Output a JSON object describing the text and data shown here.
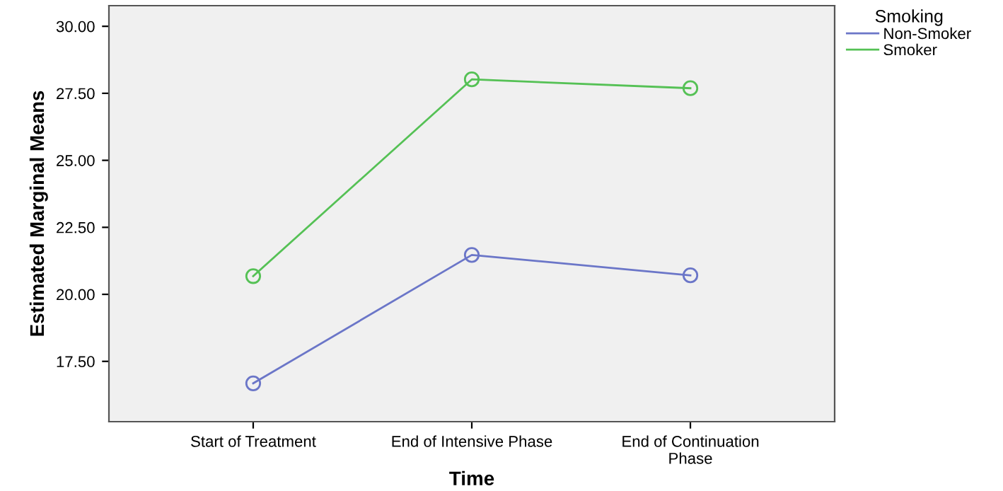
{
  "chart_data": {
    "type": "line",
    "xlabel": "Time",
    "ylabel": "Estimated Marginal Means",
    "legend_title": "Smoking",
    "categories": [
      "Start of Treatment",
      "End of Intensive Phase",
      "End of Continuation\nPhase"
    ],
    "series": [
      {
        "name": "Non-Smoker",
        "color": "#6b76c8",
        "values": [
          16.68,
          21.47,
          20.71
        ]
      },
      {
        "name": "Smoker",
        "color": "#55c155",
        "values": [
          20.68,
          28.02,
          27.69
        ]
      }
    ],
    "ylim": [
      15.25,
      30.77
    ],
    "yticks": [
      {
        "value": 17.5,
        "label": "17.50"
      },
      {
        "value": 20,
        "label": "20.00"
      },
      {
        "value": 22.5,
        "label": "22.50"
      },
      {
        "value": 25,
        "label": "25.00"
      },
      {
        "value": 27.5,
        "label": "27.50"
      },
      {
        "value": 30,
        "label": "30.00"
      }
    ],
    "marker": "circle",
    "line_style": "solid",
    "grid": false,
    "legend": "top right"
  }
}
